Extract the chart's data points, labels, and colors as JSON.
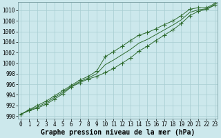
{
  "xlabel": "Graphe pression niveau de la mer (hPa)",
  "x_values": [
    0,
    1,
    2,
    3,
    4,
    5,
    6,
    7,
    8,
    9,
    10,
    11,
    12,
    13,
    14,
    15,
    16,
    17,
    18,
    19,
    20,
    21,
    22,
    23
  ],
  "line_upper": [
    990.3,
    991.2,
    992.0,
    992.8,
    993.8,
    994.8,
    995.8,
    996.8,
    997.5,
    998.5,
    1001.2,
    1002.2,
    1003.2,
    1004.3,
    1005.3,
    1005.8,
    1006.5,
    1007.3,
    1008.0,
    1009.0,
    1010.2,
    1010.5,
    1010.5,
    1011.3
  ],
  "line_lower": [
    990.3,
    991.0,
    991.5,
    992.2,
    993.2,
    994.2,
    995.5,
    996.3,
    997.0,
    997.5,
    998.2,
    999.0,
    1000.0,
    1001.0,
    1002.3,
    1003.2,
    1004.3,
    1005.3,
    1006.3,
    1007.5,
    1009.0,
    1009.8,
    1010.2,
    1011.0
  ],
  "line_smooth": [
    990.3,
    991.1,
    991.7,
    992.5,
    993.5,
    994.5,
    995.6,
    996.5,
    997.2,
    998.0,
    999.7,
    1000.6,
    1001.6,
    1002.6,
    1003.8,
    1004.5,
    1005.4,
    1006.3,
    1007.2,
    1008.2,
    1009.6,
    1010.1,
    1010.3,
    1011.1
  ],
  "line_color": "#2d6a2d",
  "bg_color": "#cce8ec",
  "grid_color": "#a8cdd2",
  "ylim": [
    989.5,
    1011.5
  ],
  "yticks": [
    990,
    992,
    994,
    996,
    998,
    1000,
    1002,
    1004,
    1006,
    1008,
    1010
  ],
  "xticks": [
    0,
    1,
    2,
    3,
    4,
    5,
    6,
    7,
    8,
    9,
    10,
    11,
    12,
    13,
    14,
    15,
    16,
    17,
    18,
    19,
    20,
    21,
    22,
    23
  ],
  "tick_fontsize": 5.5,
  "xlabel_fontsize": 7.0,
  "marker": "+",
  "marker_size": 4.0
}
